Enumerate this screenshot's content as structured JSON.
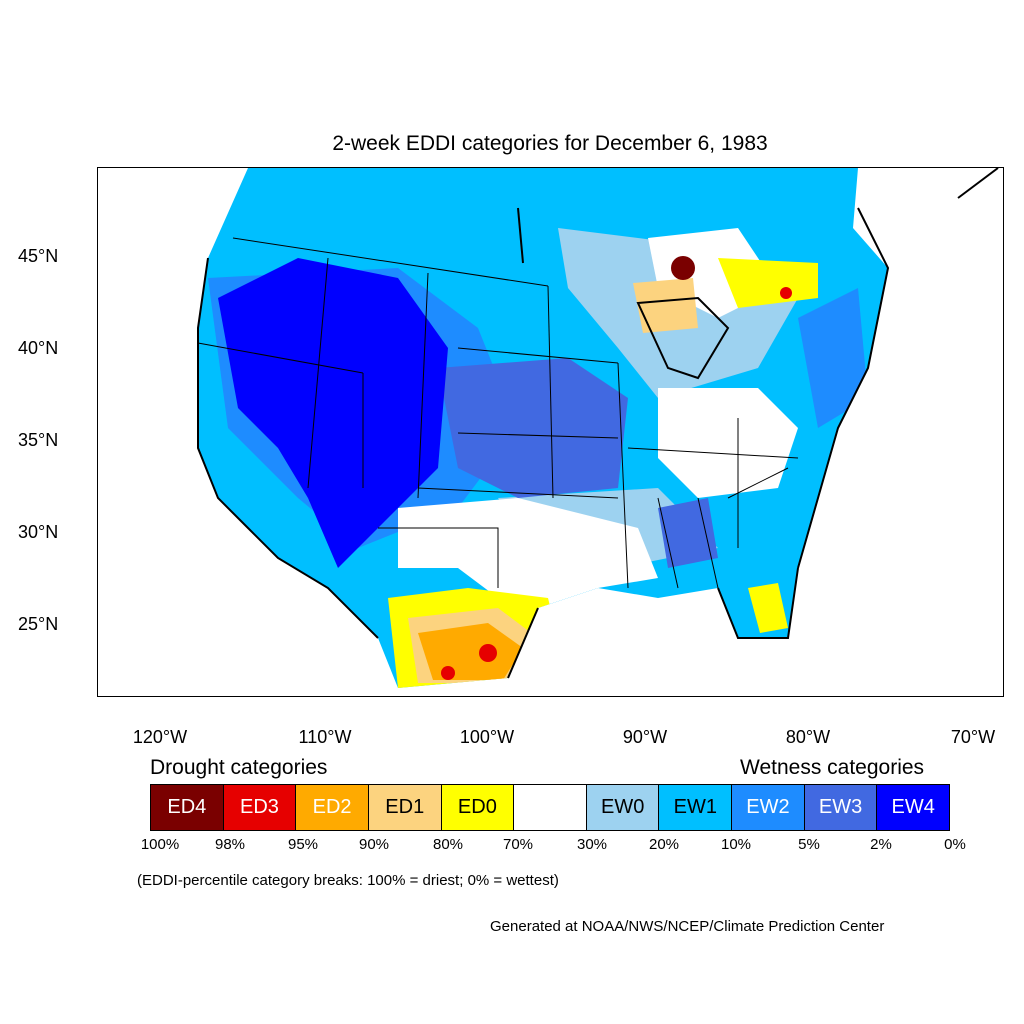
{
  "title": "2-week EDDI categories for December 6, 1983",
  "map": {
    "latitude_labels": [
      "45°N",
      "40°N",
      "35°N",
      "30°N",
      "25°N"
    ],
    "longitude_labels": [
      "120°W",
      "110°W",
      "100°W",
      "90°W",
      "80°W",
      "70°W"
    ]
  },
  "legend": {
    "drought_heading": "Drought categories",
    "wetness_heading": "Wetness categories",
    "categories": [
      {
        "label": "ED4",
        "color": "#7a0000"
      },
      {
        "label": "ED3",
        "color": "#e60000"
      },
      {
        "label": "ED2",
        "color": "#ffaa00"
      },
      {
        "label": "ED1",
        "color": "#fcd37f"
      },
      {
        "label": "ED0",
        "color": "#ffff00"
      },
      {
        "label": "",
        "color": "#ffffff"
      },
      {
        "label": "EW0",
        "color": "#9dd2f0"
      },
      {
        "label": "EW1",
        "color": "#00bfff"
      },
      {
        "label": "EW2",
        "color": "#1e8cff"
      },
      {
        "label": "EW3",
        "color": "#4169e1"
      },
      {
        "label": "EW4",
        "color": "#0000ff"
      }
    ],
    "percent_breaks": [
      "100%",
      "98%",
      "95%",
      "90%",
      "80%",
      "70%",
      "30%",
      "20%",
      "10%",
      "5%",
      "2%",
      "0%"
    ],
    "note": "(EDDI-percentile category breaks: 100% = driest; 0% = wettest)"
  },
  "credit": "Generated at NOAA/NWS/NCEP/Climate Prediction Center"
}
